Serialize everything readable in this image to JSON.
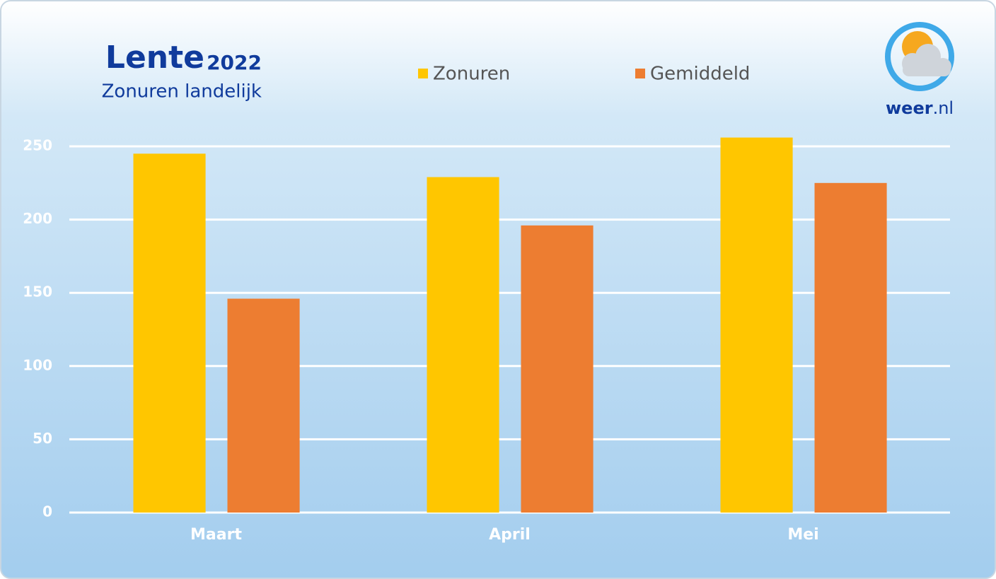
{
  "chart_data": {
    "type": "bar",
    "title": [
      "Lente",
      "2022"
    ],
    "subtitle": "Zonuren landelijk",
    "logo": [
      "weer",
      ".nl"
    ],
    "categories": [
      "Maart",
      "April",
      "Mei"
    ],
    "series": [
      {
        "name": "Zonuren",
        "color": "#ffc600",
        "values": [
          245,
          229,
          256
        ]
      },
      {
        "name": "Gemiddeld",
        "color": "#ed7d31",
        "values": [
          146,
          196,
          225
        ]
      }
    ],
    "ylim": [
      0,
      250
    ],
    "yticks": [
      0,
      50,
      100,
      150,
      200,
      250
    ],
    "grid": true
  }
}
